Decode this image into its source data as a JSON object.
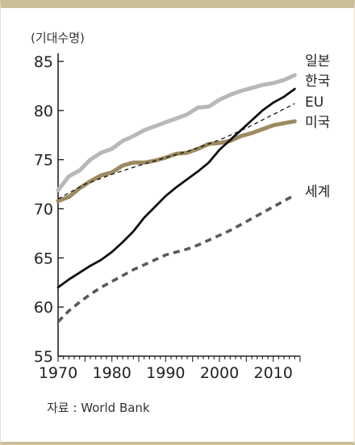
{
  "chart_data": {
    "type": "line",
    "ylabel": "(기대수명)",
    "source": "자료 : World Bank",
    "xlim": [
      1970,
      2015
    ],
    "ylim": [
      55,
      85
    ],
    "x_ticks": [
      "1970",
      "1980",
      "1990",
      "2000",
      "2010"
    ],
    "y_ticks": [
      "55",
      "60",
      "65",
      "70",
      "75",
      "80",
      "85"
    ],
    "grid": false,
    "legend": "labels at line ends (right)",
    "series": [
      {
        "name": "일본",
        "color": "#b8b8b8",
        "style": "solid-thick",
        "points": [
          [
            1970,
            71.9
          ],
          [
            1972,
            73.3
          ],
          [
            1974,
            73.9
          ],
          [
            1976,
            75.0
          ],
          [
            1978,
            75.7
          ],
          [
            1980,
            76.1
          ],
          [
            1982,
            76.9
          ],
          [
            1984,
            77.4
          ],
          [
            1986,
            78.0
          ],
          [
            1988,
            78.4
          ],
          [
            1990,
            78.8
          ],
          [
            1992,
            79.2
          ],
          [
            1994,
            79.6
          ],
          [
            1996,
            80.3
          ],
          [
            1998,
            80.4
          ],
          [
            2000,
            81.1
          ],
          [
            2002,
            81.6
          ],
          [
            2004,
            82.0
          ],
          [
            2006,
            82.3
          ],
          [
            2008,
            82.6
          ],
          [
            2010,
            82.8
          ],
          [
            2012,
            83.1
          ],
          [
            2014,
            83.6
          ]
        ]
      },
      {
        "name": "한국",
        "color": "#111111",
        "style": "solid",
        "points": [
          [
            1970,
            62.0
          ],
          [
            1972,
            62.8
          ],
          [
            1974,
            63.5
          ],
          [
            1976,
            64.2
          ],
          [
            1978,
            64.8
          ],
          [
            1980,
            65.6
          ],
          [
            1982,
            66.6
          ],
          [
            1984,
            67.7
          ],
          [
            1986,
            69.1
          ],
          [
            1988,
            70.2
          ],
          [
            1990,
            71.3
          ],
          [
            1992,
            72.2
          ],
          [
            1994,
            73.0
          ],
          [
            1996,
            73.8
          ],
          [
            1998,
            74.7
          ],
          [
            2000,
            76.0
          ],
          [
            2002,
            77.0
          ],
          [
            2004,
            78.0
          ],
          [
            2006,
            79.0
          ],
          [
            2008,
            80.0
          ],
          [
            2010,
            80.8
          ],
          [
            2012,
            81.4
          ],
          [
            2014,
            82.2
          ]
        ]
      },
      {
        "name": "EU",
        "color": "#111111",
        "style": "dashed-thin",
        "points": [
          [
            1970,
            71.0
          ],
          [
            1975,
            72.5
          ],
          [
            1980,
            73.5
          ],
          [
            1985,
            74.4
          ],
          [
            1990,
            75.2
          ],
          [
            1995,
            76.0
          ],
          [
            2000,
            77.0
          ],
          [
            2005,
            78.2
          ],
          [
            2010,
            79.6
          ],
          [
            2014,
            80.7
          ]
        ]
      },
      {
        "name": "미국",
        "color": "#9c8a60",
        "style": "solid-thick",
        "points": [
          [
            1970,
            70.8
          ],
          [
            1972,
            71.2
          ],
          [
            1974,
            72.1
          ],
          [
            1976,
            72.8
          ],
          [
            1978,
            73.4
          ],
          [
            1980,
            73.7
          ],
          [
            1982,
            74.4
          ],
          [
            1984,
            74.7
          ],
          [
            1986,
            74.7
          ],
          [
            1988,
            74.9
          ],
          [
            1990,
            75.2
          ],
          [
            1992,
            75.6
          ],
          [
            1994,
            75.7
          ],
          [
            1996,
            76.1
          ],
          [
            1998,
            76.6
          ],
          [
            2000,
            76.7
          ],
          [
            2002,
            76.9
          ],
          [
            2004,
            77.4
          ],
          [
            2006,
            77.7
          ],
          [
            2008,
            78.1
          ],
          [
            2010,
            78.5
          ],
          [
            2012,
            78.7
          ],
          [
            2014,
            78.9
          ]
        ]
      },
      {
        "name": "세계",
        "color": "#5a5a5a",
        "style": "dashed-thick",
        "points": [
          [
            1970,
            58.5
          ],
          [
            1972,
            59.6
          ],
          [
            1974,
            60.5
          ],
          [
            1976,
            61.3
          ],
          [
            1978,
            62.0
          ],
          [
            1980,
            62.6
          ],
          [
            1982,
            63.2
          ],
          [
            1984,
            63.8
          ],
          [
            1986,
            64.3
          ],
          [
            1988,
            64.8
          ],
          [
            1990,
            65.3
          ],
          [
            1992,
            65.6
          ],
          [
            1994,
            65.9
          ],
          [
            1996,
            66.3
          ],
          [
            1998,
            66.8
          ],
          [
            2000,
            67.3
          ],
          [
            2002,
            67.8
          ],
          [
            2004,
            68.4
          ],
          [
            2006,
            69.0
          ],
          [
            2008,
            69.6
          ],
          [
            2010,
            70.2
          ],
          [
            2012,
            70.8
          ],
          [
            2014,
            71.4
          ]
        ]
      }
    ]
  }
}
